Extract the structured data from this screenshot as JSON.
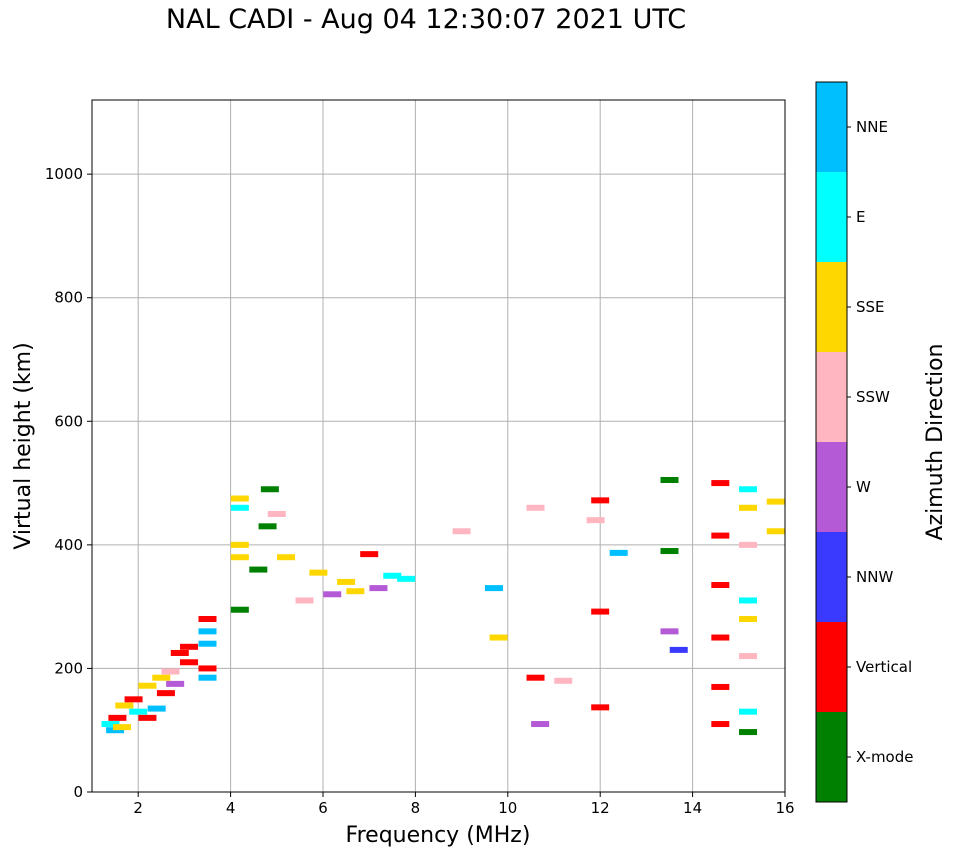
{
  "chart_data": {
    "type": "scatter",
    "title": "NAL CADI - Aug 04 12:30:07 2021 UTC",
    "xlabel": "Frequency (MHz)",
    "ylabel": "Virtual height (km)",
    "xlim": [
      1,
      16
    ],
    "ylim": [
      0,
      1120
    ],
    "xticks": [
      2,
      4,
      6,
      8,
      10,
      12,
      14,
      16
    ],
    "yticks": [
      0,
      200,
      400,
      600,
      800,
      1000
    ],
    "grid": true,
    "colorbar": {
      "label": "Azimuth Direction",
      "categories": [
        {
          "name": "X-mode",
          "color": "#008000"
        },
        {
          "name": "Vertical",
          "color": "#ff0000"
        },
        {
          "name": "NNW",
          "color": "#3a3aff"
        },
        {
          "name": "W",
          "color": "#b45ad6"
        },
        {
          "name": "SSW",
          "color": "#ffb6c1"
        },
        {
          "name": "SSE",
          "color": "#ffd700"
        },
        {
          "name": "E",
          "color": "#00ffff"
        },
        {
          "name": "NNE",
          "color": "#00bfff"
        }
      ]
    },
    "points": [
      {
        "f": 1.4,
        "h": 110,
        "dir": "E"
      },
      {
        "f": 1.5,
        "h": 100,
        "dir": "NNE"
      },
      {
        "f": 1.55,
        "h": 120,
        "dir": "Vertical"
      },
      {
        "f": 1.65,
        "h": 105,
        "dir": "SSE"
      },
      {
        "f": 1.7,
        "h": 140,
        "dir": "SSE"
      },
      {
        "f": 1.9,
        "h": 150,
        "dir": "Vertical"
      },
      {
        "f": 2.0,
        "h": 130,
        "dir": "E"
      },
      {
        "f": 2.2,
        "h": 120,
        "dir": "Vertical"
      },
      {
        "f": 2.2,
        "h": 172,
        "dir": "SSE"
      },
      {
        "f": 2.4,
        "h": 135,
        "dir": "NNE"
      },
      {
        "f": 2.5,
        "h": 185,
        "dir": "SSE"
      },
      {
        "f": 2.6,
        "h": 160,
        "dir": "Vertical"
      },
      {
        "f": 2.7,
        "h": 195,
        "dir": "SSW"
      },
      {
        "f": 2.8,
        "h": 175,
        "dir": "W"
      },
      {
        "f": 2.9,
        "h": 225,
        "dir": "Vertical"
      },
      {
        "f": 3.1,
        "h": 210,
        "dir": "Vertical"
      },
      {
        "f": 3.1,
        "h": 235,
        "dir": "Vertical"
      },
      {
        "f": 3.5,
        "h": 185,
        "dir": "NNE"
      },
      {
        "f": 3.5,
        "h": 200,
        "dir": "Vertical"
      },
      {
        "f": 3.5,
        "h": 240,
        "dir": "NNE"
      },
      {
        "f": 3.5,
        "h": 260,
        "dir": "NNE"
      },
      {
        "f": 3.5,
        "h": 280,
        "dir": "Vertical"
      },
      {
        "f": 4.2,
        "h": 295,
        "dir": "X-mode"
      },
      {
        "f": 4.2,
        "h": 380,
        "dir": "SSE"
      },
      {
        "f": 4.2,
        "h": 400,
        "dir": "SSE"
      },
      {
        "f": 4.2,
        "h": 460,
        "dir": "E"
      },
      {
        "f": 4.2,
        "h": 475,
        "dir": "SSE"
      },
      {
        "f": 4.6,
        "h": 360,
        "dir": "X-mode"
      },
      {
        "f": 4.8,
        "h": 430,
        "dir": "X-mode"
      },
      {
        "f": 4.85,
        "h": 490,
        "dir": "X-mode"
      },
      {
        "f": 5.0,
        "h": 450,
        "dir": "SSW"
      },
      {
        "f": 5.2,
        "h": 380,
        "dir": "SSE"
      },
      {
        "f": 5.6,
        "h": 310,
        "dir": "SSW"
      },
      {
        "f": 5.9,
        "h": 355,
        "dir": "SSE"
      },
      {
        "f": 6.2,
        "h": 320,
        "dir": "W"
      },
      {
        "f": 6.5,
        "h": 340,
        "dir": "SSE"
      },
      {
        "f": 6.7,
        "h": 325,
        "dir": "SSE"
      },
      {
        "f": 7.0,
        "h": 385,
        "dir": "Vertical"
      },
      {
        "f": 7.2,
        "h": 330,
        "dir": "W"
      },
      {
        "f": 7.5,
        "h": 350,
        "dir": "E"
      },
      {
        "f": 7.8,
        "h": 345,
        "dir": "E"
      },
      {
        "f": 9.0,
        "h": 422,
        "dir": "SSW"
      },
      {
        "f": 9.7,
        "h": 330,
        "dir": "NNE"
      },
      {
        "f": 9.8,
        "h": 250,
        "dir": "SSE"
      },
      {
        "f": 10.6,
        "h": 460,
        "dir": "SSW"
      },
      {
        "f": 10.6,
        "h": 185,
        "dir": "Vertical"
      },
      {
        "f": 10.7,
        "h": 110,
        "dir": "W"
      },
      {
        "f": 11.2,
        "h": 180,
        "dir": "SSW"
      },
      {
        "f": 11.9,
        "h": 440,
        "dir": "SSW"
      },
      {
        "f": 12.0,
        "h": 472,
        "dir": "Vertical"
      },
      {
        "f": 12.0,
        "h": 292,
        "dir": "Vertical"
      },
      {
        "f": 12.0,
        "h": 137,
        "dir": "Vertical"
      },
      {
        "f": 12.4,
        "h": 387,
        "dir": "NNE"
      },
      {
        "f": 13.5,
        "h": 505,
        "dir": "X-mode"
      },
      {
        "f": 13.5,
        "h": 390,
        "dir": "X-mode"
      },
      {
        "f": 13.5,
        "h": 260,
        "dir": "W"
      },
      {
        "f": 13.7,
        "h": 230,
        "dir": "NNW"
      },
      {
        "f": 14.6,
        "h": 500,
        "dir": "Vertical"
      },
      {
        "f": 14.6,
        "h": 415,
        "dir": "Vertical"
      },
      {
        "f": 14.6,
        "h": 335,
        "dir": "Vertical"
      },
      {
        "f": 14.6,
        "h": 250,
        "dir": "Vertical"
      },
      {
        "f": 14.6,
        "h": 170,
        "dir": "Vertical"
      },
      {
        "f": 14.6,
        "h": 110,
        "dir": "Vertical"
      },
      {
        "f": 15.2,
        "h": 490,
        "dir": "E"
      },
      {
        "f": 15.2,
        "h": 460,
        "dir": "SSE"
      },
      {
        "f": 15.2,
        "h": 400,
        "dir": "SSW"
      },
      {
        "f": 15.2,
        "h": 310,
        "dir": "E"
      },
      {
        "f": 15.2,
        "h": 280,
        "dir": "SSE"
      },
      {
        "f": 15.2,
        "h": 220,
        "dir": "SSW"
      },
      {
        "f": 15.2,
        "h": 130,
        "dir": "E"
      },
      {
        "f": 15.2,
        "h": 97,
        "dir": "X-mode"
      },
      {
        "f": 15.8,
        "h": 470,
        "dir": "SSE"
      },
      {
        "f": 15.8,
        "h": 422,
        "dir": "SSE"
      }
    ]
  }
}
